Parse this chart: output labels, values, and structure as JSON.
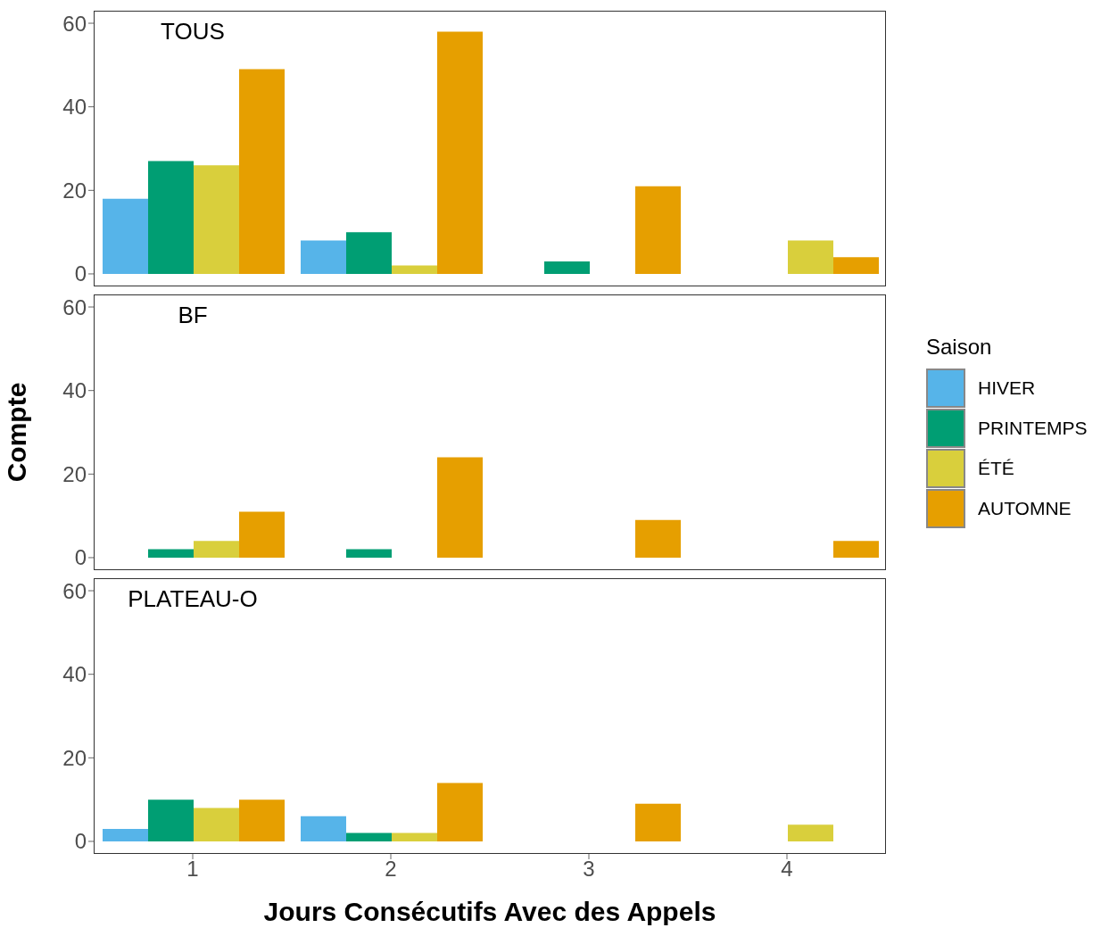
{
  "chart_data": [
    {
      "type": "bar",
      "title": "TOUS",
      "categories": [
        "1",
        "2",
        "3",
        "4"
      ],
      "ylim": [
        -3,
        63
      ],
      "yticks": [
        0,
        20,
        40,
        60
      ],
      "grid": false,
      "legend": false,
      "tick_labels": "y",
      "series": [
        {
          "color": "#56b4e9",
          "values": [
            18,
            8,
            null,
            null
          ]
        },
        {
          "color": "#009e73",
          "values": [
            27,
            10,
            3,
            null
          ]
        },
        {
          "color": "#d9cf3c",
          "values": [
            26,
            2,
            null,
            8
          ]
        },
        {
          "color": "#e69f00",
          "values": [
            49,
            58,
            21,
            4
          ]
        }
      ]
    },
    {
      "type": "bar",
      "title": "BF",
      "ylabel": "Compte",
      "legend_title": "Saison",
      "legend": "right",
      "categories": [
        "1",
        "2",
        "3",
        "4"
      ],
      "ylim": [
        -3,
        63
      ],
      "yticks": [
        0,
        20,
        40,
        60
      ],
      "grid": false,
      "tick_labels": "y",
      "series": [
        {
          "name": "HIVER",
          "color": "#56b4e9",
          "values": [
            null,
            null,
            null,
            null
          ]
        },
        {
          "name": "PRINTEMPS",
          "color": "#009e73",
          "values": [
            2,
            2,
            null,
            null
          ]
        },
        {
          "name": "ÉTÉ",
          "color": "#d9cf3c",
          "values": [
            4,
            null,
            null,
            null
          ]
        },
        {
          "name": "AUTOMNE",
          "color": "#e69f00",
          "values": [
            11,
            24,
            9,
            4
          ]
        }
      ]
    },
    {
      "type": "bar",
      "title": "PLATEAU-O",
      "xlabel": "Jours Consécutifs Avec des Appels",
      "categories": [
        "1",
        "2",
        "3",
        "4"
      ],
      "ylim": [
        -3,
        63
      ],
      "yticks": [
        0,
        20,
        40,
        60
      ],
      "grid": false,
      "legend": false,
      "series": [
        {
          "color": "#56b4e9",
          "values": [
            3,
            6,
            null,
            null
          ]
        },
        {
          "color": "#009e73",
          "values": [
            10,
            2,
            null,
            null
          ]
        },
        {
          "color": "#d9cf3c",
          "values": [
            8,
            2,
            null,
            4
          ]
        },
        {
          "color": "#e69f00",
          "values": [
            10,
            14,
            9,
            null
          ]
        }
      ]
    }
  ]
}
